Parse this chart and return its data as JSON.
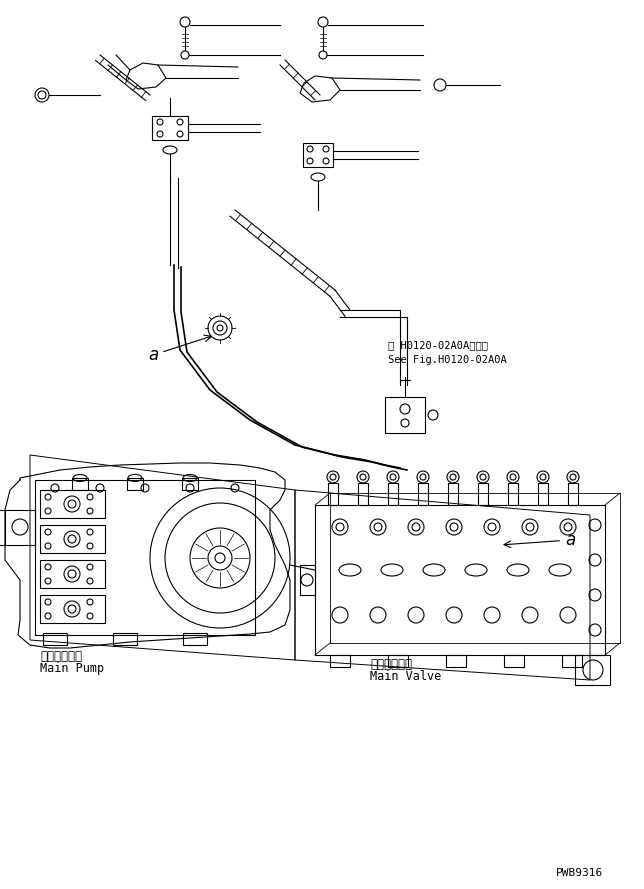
{
  "bg_color": "#ffffff",
  "line_color": "#000000",
  "pwb_code": "PWB9316",
  "ref_text_line1": "第 H0120-02A0A図参照",
  "ref_text_line2": "See Fig.H0120-02A0A",
  "main_pump_jp": "メインポンプ",
  "main_pump_en": "Main Pump",
  "main_valve_jp": "メインバルブ",
  "main_valve_en": "Main Valve",
  "label_a": "a"
}
